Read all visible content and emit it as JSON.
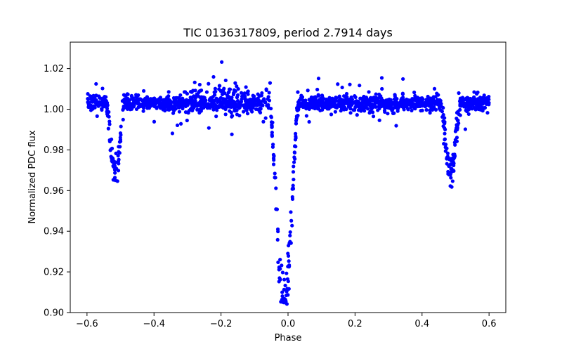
{
  "chart_data": {
    "type": "scatter",
    "title": "TIC 0136317809, period 2.7914 days",
    "xlabel": "Phase",
    "ylabel": "Normalized PDC flux",
    "xlim": [
      -0.65,
      0.65
    ],
    "ylim": [
      0.9,
      1.033
    ],
    "xticks": [
      -0.6,
      -0.4,
      -0.2,
      0.0,
      0.2,
      0.4,
      0.6
    ],
    "xtick_labels": [
      "−0.6",
      "−0.4",
      "−0.2",
      "0.0",
      "0.2",
      "0.4",
      "0.6"
    ],
    "yticks": [
      0.9,
      0.92,
      0.94,
      0.96,
      0.98,
      1.0,
      1.02
    ],
    "ytick_labels": [
      "0.90",
      "0.92",
      "0.94",
      "0.96",
      "0.98",
      "1.00",
      "1.02"
    ],
    "grid": false,
    "legend": "none",
    "marker_color": "#0000ff",
    "series": [
      {
        "model": "phase-folded eclipsing binary light curve",
        "x_range": [
          -0.6,
          0.6
        ],
        "baseline": 1.003,
        "primary_eclipse": {
          "phase": -0.012,
          "min_flux": 0.906,
          "half_width": 0.042
        },
        "secondary_eclipse": [
          {
            "phase": -0.515,
            "min_flux": 0.97,
            "half_width": 0.026
          },
          {
            "phase": 0.485,
            "min_flux": 0.97,
            "half_width": 0.026
          }
        ],
        "out_of_eclipse_scatter_max": 1.028,
        "n_points": 1800
      }
    ]
  }
}
